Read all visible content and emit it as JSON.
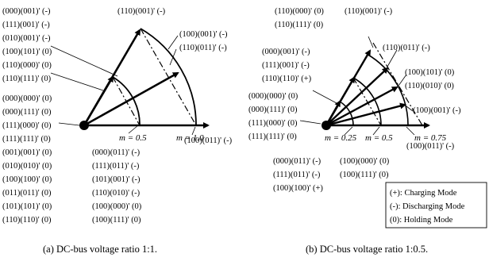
{
  "left": {
    "vectors_top_labels": [
      "(000)(001)' (-)",
      "(111)(001)' (-)",
      "(010)(001)' (-)",
      "(100)(101)' (0)",
      "(110)(000)' (0)",
      "(110)(111)' (0)"
    ],
    "zero_vector_labels": [
      "(000)(000)' (0)",
      "(000)(111)' (0)",
      "(111)(000)' (0)",
      "(111)(111)' (0)",
      "(001)(001)' (0)",
      "(010)(010)' (0)",
      "(100)(100)' (0)",
      "(011)(011)' (0)",
      "(101)(101)' (0)",
      "(110)(110)' (0)"
    ],
    "bottom_list_labels": [
      "(000)(011)' (-)",
      "(111)(011)' (-)",
      "(101)(001)' (-)",
      "(110)(010)' (-)",
      "(100)(000)' (0)",
      "(100)(111)' (0)"
    ],
    "tip_top_label": "(110)(001)' (-)",
    "upper_right_labels": [
      "(100)(001)' (-)",
      "(110)(011)' (-)"
    ],
    "axis_end_label": "(100)(011)' (-)",
    "m_labels": [
      "m = 0.5",
      "m = 1.0"
    ],
    "caption": "(a) DC-bus voltage ratio 1:1."
  },
  "right": {
    "top_left_labels": [
      "(110)(000)' (0)",
      "(110)(111)' (0)"
    ],
    "top_label_2": "(110)(001)' (-)",
    "left_labels": [
      "(000)(001)' (-)",
      "(111)(001)' (-)",
      "(110)(110)' (+)"
    ],
    "zero_vector_labels": [
      "(000)(000)' (0)",
      "(000)(111)' (0)",
      "(111)(000)' (0)",
      "(111)(111)' (0)"
    ],
    "right_labels": [
      "(110)(011)' (-)",
      "(100)(101)' (0)",
      "(110)(010)' (0)",
      "(100)(001)' (-)"
    ],
    "bottom_left_labels": [
      "(000)(011)' (-)",
      "(111)(011)' (-)",
      "(100)(100)' (+)"
    ],
    "bottom_mid_labels": [
      "(100)(000)' (0)",
      "(100)(111)' (0)"
    ],
    "axis_end_label": "(100)(011)' (-)",
    "m_labels": [
      "m = 0.25",
      "m = 0.5",
      "m = 0.75"
    ],
    "legend": [
      "(+): Charging Mode",
      "(-): Discharging Mode",
      "(0): Holding Mode"
    ],
    "caption": "(b) DC-bus voltage ratio 1:0.5."
  }
}
